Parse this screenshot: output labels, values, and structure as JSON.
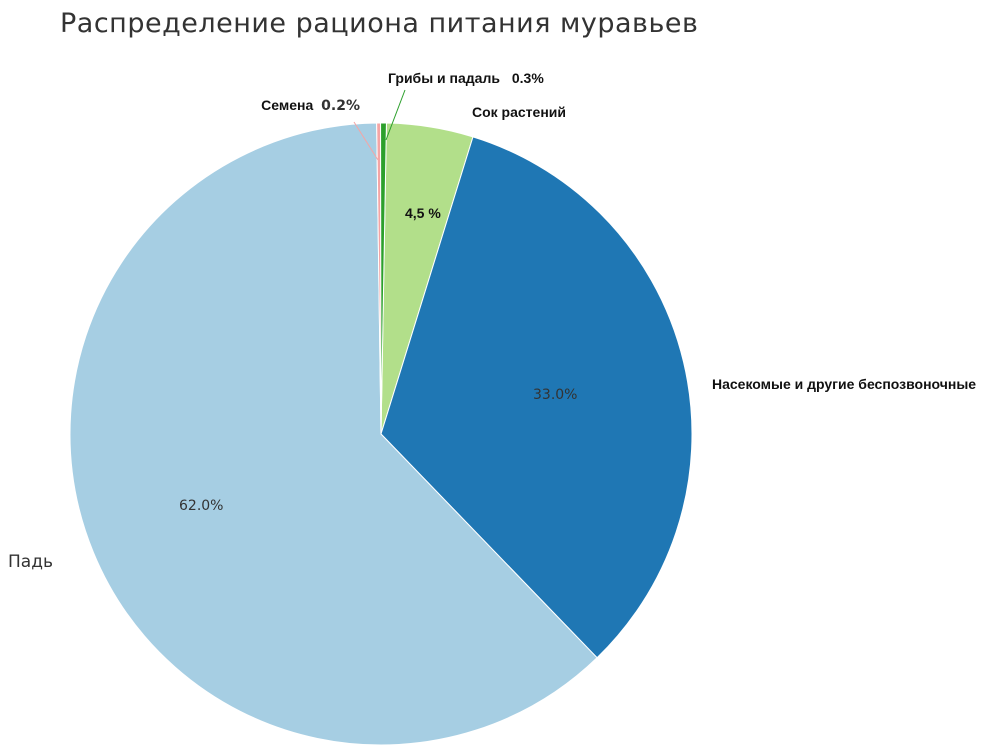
{
  "chart_data": {
    "type": "pie",
    "title": "Распределение рациона питания муравьев",
    "slices": [
      {
        "label": "Насекомые и другие беспозвоночные",
        "value": 33.0,
        "value_label": "33.0%",
        "color": "#1f77b4"
      },
      {
        "label": "Падь",
        "value": 62.0,
        "value_label": "62.0%",
        "color": "#a6cee3"
      },
      {
        "label": "Семена",
        "value": 0.2,
        "value_label": "0.2%",
        "color": "#f4a5a5"
      },
      {
        "label": "Грибы и падаль",
        "value": 0.3,
        "value_label": "0.3%",
        "color": "#2ca02c"
      },
      {
        "label": "Сок растений",
        "value": 4.5,
        "value_label": "4,5 %",
        "color": "#b2df8a"
      }
    ]
  }
}
